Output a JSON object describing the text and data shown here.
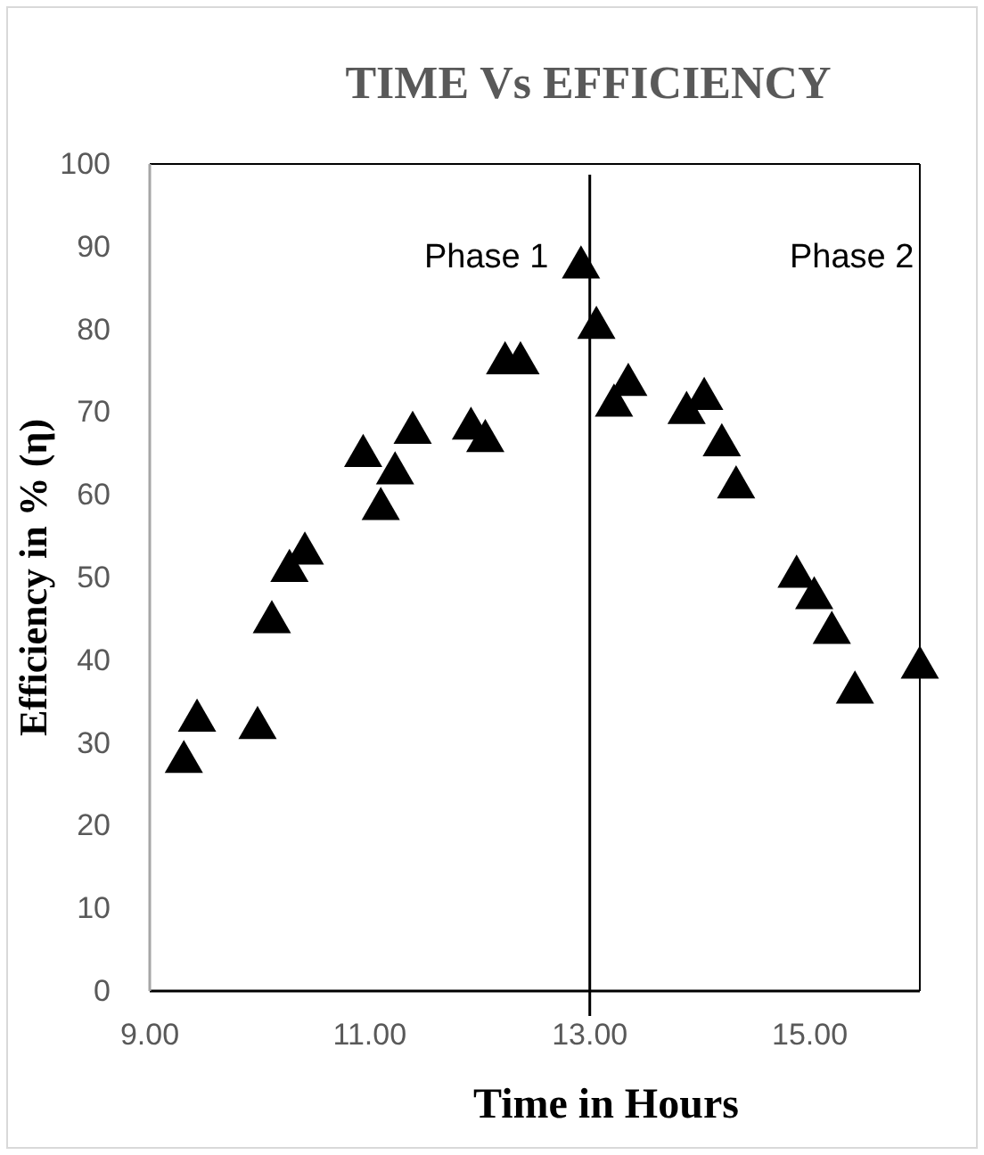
{
  "chart_data": {
    "type": "scatter",
    "title": "TIME Vs EFFICIENCY",
    "xlabel": "Time in Hours",
    "ylabel": "Efficiency in % (η)",
    "x": [
      9.31,
      9.43,
      9.98,
      10.11,
      10.27,
      10.41,
      10.94,
      11.1,
      11.23,
      11.39,
      11.92,
      12.05,
      12.23,
      12.37,
      12.92,
      13.06,
      13.22,
      13.35,
      13.88,
      14.04,
      14.2,
      14.33,
      14.88,
      15.04,
      15.2,
      15.41,
      16
    ],
    "series": [
      {
        "color": "#000000",
        "values": [
          27.7,
          32.7,
          31.8,
          44.6,
          50.8,
          52.9,
          64.7,
          58.3,
          62.6,
          67.5,
          68,
          66.5,
          75.9,
          75.9,
          87.5,
          80.2,
          70.8,
          73.3,
          69.9,
          71.6,
          66,
          60.9,
          50.1,
          47.5,
          43.3,
          36.1,
          39.1
        ]
      }
    ],
    "xlim": [
      9,
      16
    ],
    "xticks": [
      {
        "value": 9,
        "label": "9.00"
      },
      {
        "value": 11,
        "label": "11.00"
      },
      {
        "value": 13,
        "label": "13.00"
      },
      {
        "value": 15,
        "label": "15.00"
      }
    ],
    "ylim": [
      0,
      100
    ],
    "yticks": [
      0,
      10,
      20,
      30,
      40,
      50,
      60,
      70,
      80,
      90,
      100
    ],
    "ref_lines": [
      {
        "axis": "x",
        "value": 13,
        "color": "#000000"
      }
    ],
    "annotations": [
      "Phase 1",
      "Phase 2"
    ],
    "marker": "triangle",
    "grid": false
  }
}
